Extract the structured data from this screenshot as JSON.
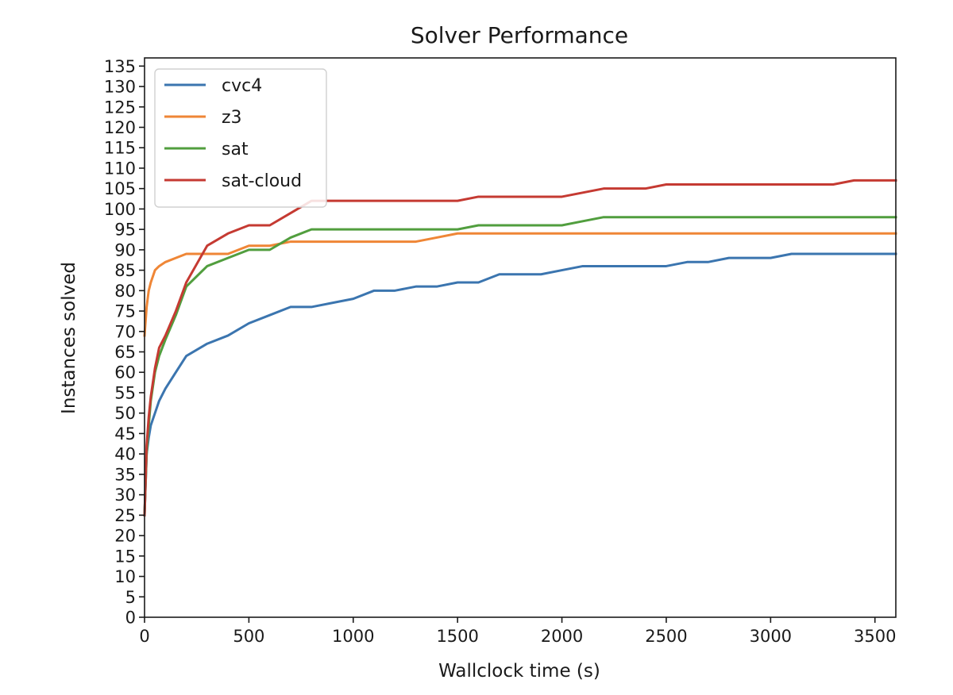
{
  "chart_data": {
    "type": "line",
    "title": "Solver Performance",
    "xlabel": "Wallclock time (s)",
    "ylabel": "Instances solved",
    "xlim": [
      0,
      3600
    ],
    "ylim": [
      0,
      137
    ],
    "xticks": [
      0,
      500,
      1000,
      1500,
      2000,
      2500,
      3000,
      3500
    ],
    "yticks": [
      0,
      5,
      10,
      15,
      20,
      25,
      30,
      35,
      40,
      45,
      50,
      55,
      60,
      65,
      70,
      75,
      80,
      85,
      90,
      95,
      100,
      105,
      110,
      115,
      120,
      125,
      130,
      135
    ],
    "grid": false,
    "legend_position": "top-left",
    "series": [
      {
        "name": "cvc4",
        "color": "#3b75af",
        "x": [
          0,
          10,
          20,
          30,
          50,
          70,
          100,
          150,
          200,
          300,
          400,
          500,
          600,
          700,
          800,
          900,
          1000,
          1100,
          1200,
          1300,
          1400,
          1500,
          1600,
          1700,
          1800,
          1900,
          2000,
          2100,
          2200,
          2300,
          2400,
          2500,
          2600,
          2700,
          2800,
          2900,
          3000,
          3100,
          3200,
          3300,
          3400,
          3500,
          3600
        ],
        "y": [
          25,
          40,
          44,
          47,
          50,
          53,
          56,
          60,
          64,
          67,
          69,
          72,
          74,
          76,
          76,
          77,
          78,
          80,
          80,
          81,
          81,
          82,
          82,
          84,
          84,
          84,
          85,
          86,
          86,
          86,
          86,
          86,
          87,
          87,
          88,
          88,
          88,
          89,
          89,
          89,
          89,
          89,
          89
        ]
      },
      {
        "name": "z3",
        "color": "#ef8636",
        "x": [
          0,
          10,
          20,
          30,
          50,
          70,
          100,
          150,
          200,
          300,
          400,
          500,
          600,
          700,
          800,
          900,
          1000,
          1100,
          1200,
          1300,
          1400,
          1500,
          1600,
          3600
        ],
        "y": [
          69,
          76,
          80,
          82,
          85,
          86,
          87,
          88,
          89,
          89,
          89,
          91,
          91,
          92,
          92,
          92,
          92,
          92,
          92,
          92,
          93,
          94,
          94,
          94
        ]
      },
      {
        "name": "sat",
        "color": "#519e3e",
        "x": [
          0,
          10,
          20,
          30,
          50,
          70,
          100,
          150,
          200,
          300,
          400,
          500,
          600,
          700,
          800,
          900,
          1000,
          1100,
          1200,
          1300,
          1400,
          1500,
          1600,
          1700,
          1800,
          1900,
          2000,
          2100,
          2200,
          2300,
          3600
        ],
        "y": [
          25,
          40,
          47,
          53,
          60,
          64,
          68,
          74,
          81,
          86,
          88,
          90,
          90,
          93,
          95,
          95,
          95,
          95,
          95,
          95,
          95,
          95,
          96,
          96,
          96,
          96,
          96,
          97,
          98,
          98,
          98
        ]
      },
      {
        "name": "sat-cloud",
        "color": "#c53a32",
        "x": [
          0,
          10,
          20,
          30,
          50,
          70,
          100,
          150,
          200,
          300,
          400,
          500,
          600,
          700,
          800,
          900,
          1000,
          1100,
          1200,
          1300,
          1400,
          1500,
          1600,
          1700,
          1800,
          1900,
          2000,
          2100,
          2200,
          2300,
          2400,
          2500,
          2600,
          2700,
          2800,
          2900,
          3000,
          3100,
          3200,
          3300,
          3400,
          3500,
          3600
        ],
        "y": [
          25,
          42,
          49,
          54,
          61,
          66,
          69,
          75,
          82,
          91,
          94,
          96,
          96,
          99,
          102,
          102,
          102,
          102,
          102,
          102,
          102,
          102,
          103,
          103,
          103,
          103,
          103,
          104,
          105,
          105,
          105,
          106,
          106,
          106,
          106,
          106,
          106,
          106,
          106,
          106,
          107,
          107,
          107
        ]
      }
    ]
  }
}
